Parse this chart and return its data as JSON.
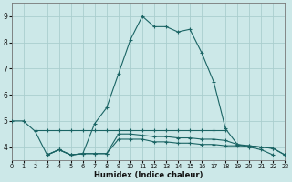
{
  "xlabel": "Humidex (Indice chaleur)",
  "bg": "#cce8e8",
  "grid_color": "#aacece",
  "lc": "#1a6464",
  "xlim": [
    0,
    23
  ],
  "ylim": [
    3.5,
    9.5
  ],
  "xticks": [
    0,
    1,
    2,
    3,
    4,
    5,
    6,
    7,
    8,
    9,
    10,
    11,
    12,
    13,
    14,
    15,
    16,
    17,
    18,
    19,
    20,
    21,
    22,
    23
  ],
  "yticks": [
    4,
    5,
    6,
    7,
    8,
    9
  ],
  "curve_main_x": [
    0,
    1,
    2,
    3,
    4,
    5,
    6,
    7,
    8,
    9,
    10,
    11,
    12,
    13,
    14,
    15,
    16,
    17,
    18,
    19,
    20,
    21,
    22
  ],
  "curve_main_y": [
    5.0,
    5.0,
    4.6,
    3.7,
    3.9,
    3.7,
    3.75,
    4.9,
    5.5,
    6.8,
    8.1,
    9.0,
    8.6,
    8.6,
    8.4,
    8.5,
    7.6,
    6.5,
    4.7,
    4.1,
    4.0,
    3.9,
    3.7
  ],
  "curve_upper_flat_x": [
    2,
    3,
    4,
    5,
    6,
    7,
    8,
    9,
    10,
    11,
    12,
    13,
    14,
    15,
    16,
    17,
    18
  ],
  "curve_upper_flat_y": [
    4.65,
    4.65,
    4.65,
    4.65,
    4.65,
    4.65,
    4.65,
    4.65,
    4.65,
    4.65,
    4.65,
    4.65,
    4.65,
    4.65,
    4.65,
    4.65,
    4.65
  ],
  "curve_lower_x": [
    3,
    4,
    5,
    6,
    7,
    8,
    9,
    10,
    11,
    12,
    13,
    14,
    15,
    16,
    17,
    18,
    19,
    20,
    21,
    22,
    23
  ],
  "curve_lower_y": [
    3.7,
    3.9,
    3.7,
    3.75,
    3.75,
    3.75,
    4.3,
    4.3,
    4.3,
    4.2,
    4.2,
    4.15,
    4.15,
    4.1,
    4.1,
    4.05,
    4.05,
    4.05,
    4.0,
    3.95,
    3.7
  ],
  "curve_mid_x": [
    3,
    4,
    5,
    6,
    7,
    8,
    9,
    10,
    11,
    12,
    13,
    14,
    15,
    16,
    17,
    18,
    19,
    20,
    21,
    22,
    23
  ],
  "curve_mid_y": [
    3.7,
    3.9,
    3.7,
    3.75,
    3.75,
    3.75,
    4.5,
    4.5,
    4.45,
    4.4,
    4.4,
    4.35,
    4.35,
    4.3,
    4.3,
    4.25,
    4.1,
    4.05,
    4.0,
    3.95,
    3.7
  ]
}
